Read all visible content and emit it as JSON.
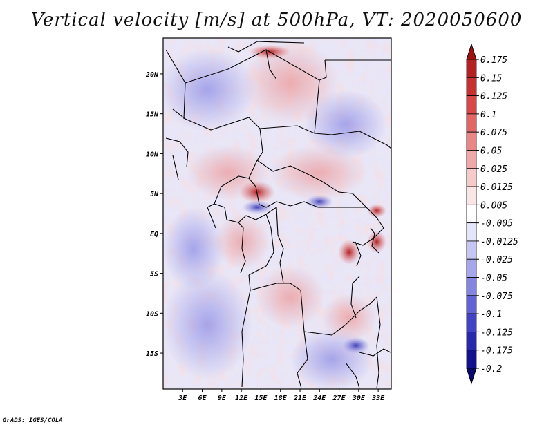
{
  "title": "Vertical velocity [m/s] at 500hPa, VT: 2020050600",
  "credit": "GrADS: IGES/COLA",
  "map": {
    "lat_labels": [
      "20N",
      "15N",
      "10N",
      "5N",
      "EQ",
      "5S",
      "10S",
      "15S"
    ],
    "lon_labels": [
      "3E",
      "6E",
      "9E",
      "12E",
      "15E",
      "18E",
      "21E",
      "24E",
      "27E",
      "30E",
      "33E"
    ],
    "lat_range": [
      -19.5,
      24.5
    ],
    "lon_range": [
      0,
      35
    ]
  },
  "colorbar": {
    "levels": [
      "0.175",
      "0.15",
      "0.125",
      "0.1",
      "0.075",
      "0.05",
      "0.025",
      "0.0125",
      "0.005",
      "-0.005",
      "-0.0125",
      "-0.025",
      "-0.05",
      "-0.075",
      "-0.1",
      "-0.125",
      "-0.175",
      "-0.2"
    ],
    "colors": [
      "#a01010",
      "#b52020",
      "#c83030",
      "#d84848",
      "#e26666",
      "#ea8686",
      "#f1a8a8",
      "#f7caca",
      "#fbe6e6",
      "#ffffff",
      "#e4e4fb",
      "#c6c6f4",
      "#a6a6ec",
      "#8484e2",
      "#6262d6",
      "#4242c4",
      "#2828ac",
      "#12128e",
      "#080870"
    ]
  }
}
